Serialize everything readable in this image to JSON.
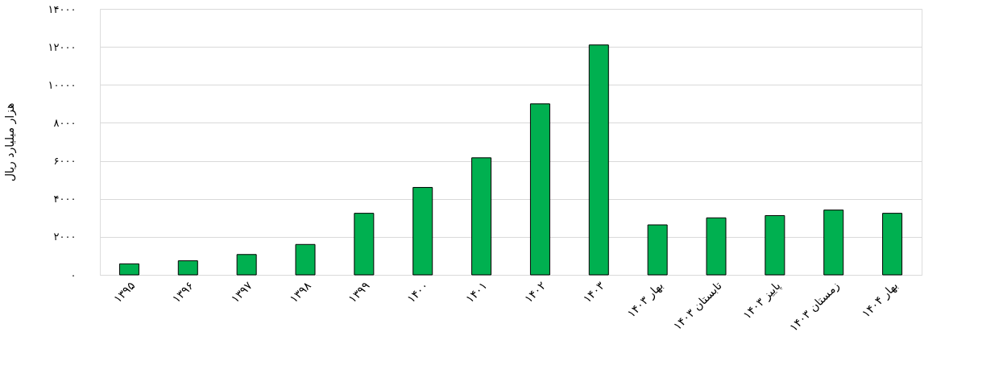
{
  "chart_data": {
    "type": "bar",
    "ylabel": "هزار میلیارد ریال",
    "categories": [
      "۱۳۹۵",
      "۱۳۹۶",
      "۱۳۹۷",
      "۱۳۹۸",
      "۱۳۹۹",
      "۱۴۰۰",
      "۱۴۰۱",
      "۱۴۰۲",
      "۱۴۰۳",
      "بهار ۱۴۰۳",
      "تابستان ۱۴۰۳",
      "پاییز ۱۴۰۳",
      "زمستان ۱۴۰۳",
      "بهار ۱۴۰۴"
    ],
    "values": [
      580,
      740,
      1070,
      1600,
      3240,
      4600,
      6160,
      9000,
      12100,
      2630,
      3000,
      3120,
      3410,
      3240
    ],
    "color": "#00b050",
    "ylim": [
      0,
      14000
    ],
    "yticks": [
      {
        "value": 0,
        "label": "۰"
      },
      {
        "value": 2000,
        "label": "۲۰۰۰"
      },
      {
        "value": 4000,
        "label": "۴۰۰۰"
      },
      {
        "value": 6000,
        "label": "۶۰۰۰"
      },
      {
        "value": 8000,
        "label": "۸۰۰۰"
      },
      {
        "value": 10000,
        "label": "۱۰۰۰۰"
      },
      {
        "value": 12000,
        "label": "۱۲۰۰۰"
      },
      {
        "value": 14000,
        "label": "۱۴۰۰۰"
      }
    ],
    "grid": "y"
  }
}
